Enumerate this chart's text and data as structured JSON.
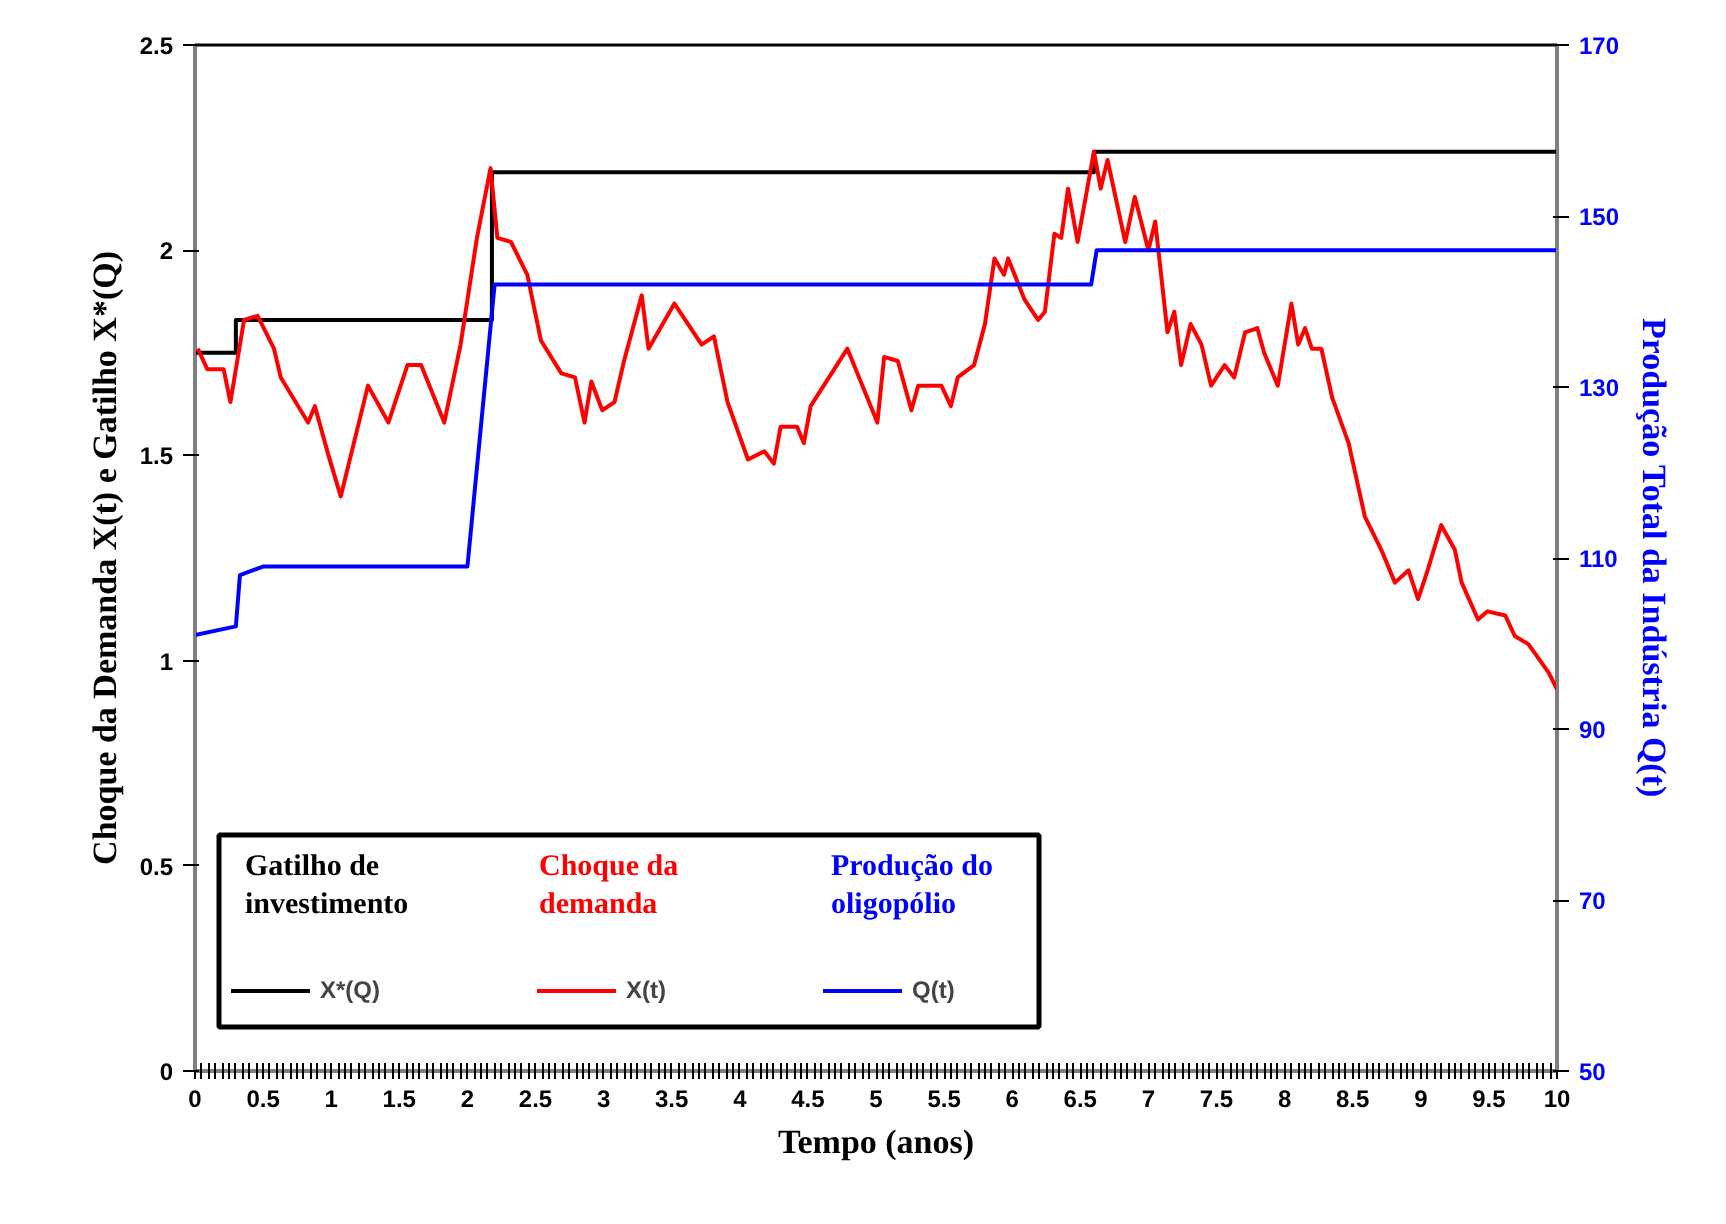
{
  "chart_data": {
    "type": "line",
    "xlabel": "Tempo (anos)",
    "ylabel": "Choque da Demanda X(t) e Gatilho X*(Q)",
    "y2label": "Produção Total da Indústria Q(t)",
    "xlim": [
      0,
      10
    ],
    "xticks": [
      0,
      0.5,
      1,
      1.5,
      2,
      2.5,
      3,
      3.5,
      4,
      4.5,
      5,
      5.5,
      6,
      6.5,
      7,
      7.5,
      8,
      8.5,
      9,
      9.5,
      10
    ],
    "ylim": [
      0,
      2.5
    ],
    "yticks": [
      0,
      0.5,
      1,
      1.5,
      2,
      2.5
    ],
    "y2lim": [
      50,
      170
    ],
    "y2ticks": [
      50,
      70,
      90,
      110,
      130,
      150,
      170
    ],
    "grid": false,
    "legend": "bottom left",
    "annotations": [
      "Gatilho de investimento",
      "Choque da demanda",
      "Produção do oligopólio"
    ],
    "series": [
      {
        "name": "X*(Q)",
        "type": "step",
        "color": "#000000",
        "x": [
          0,
          0.3,
          2.18,
          6.6,
          10
        ],
        "values": [
          1.75,
          1.83,
          2.19,
          2.24,
          2.24
        ]
      },
      {
        "name": "X(t)",
        "color": "#ff0000",
        "x": [
          0.02,
          0.09,
          0.21,
          0.26,
          0.36,
          0.46,
          0.58,
          0.63,
          0.83,
          0.88,
          0.98,
          1.07,
          1.27,
          1.42,
          1.56,
          1.66,
          1.83,
          1.95,
          2.07,
          2.17,
          2.22,
          2.32,
          2.44,
          2.54,
          2.69,
          2.79,
          2.86,
          2.91,
          2.99,
          3.08,
          3.15,
          3.28,
          3.33,
          3.52,
          3.62,
          3.72,
          3.81,
          3.91,
          4.06,
          4.18,
          4.25,
          4.3,
          4.42,
          4.47,
          4.52,
          4.79,
          5.01,
          5.06,
          5.16,
          5.26,
          5.31,
          5.48,
          5.55,
          5.6,
          5.72,
          5.8,
          5.87,
          5.94,
          5.97,
          6.09,
          6.19,
          6.24,
          6.31,
          6.36,
          6.41,
          6.48,
          6.6,
          6.65,
          6.7,
          6.83,
          6.9,
          7.0,
          7.05,
          7.14,
          7.19,
          7.24,
          7.31,
          7.39,
          7.46,
          7.56,
          7.63,
          7.71,
          7.8,
          7.85,
          7.95,
          8.05,
          8.1,
          8.15,
          8.2,
          8.27,
          8.35,
          8.47,
          8.59,
          8.71,
          8.81,
          8.91,
          8.98,
          9.05,
          9.15,
          9.25,
          9.3,
          9.42,
          9.49,
          9.62,
          9.69,
          9.79,
          9.94,
          10.0
        ],
        "values": [
          1.76,
          1.71,
          1.71,
          1.63,
          1.83,
          1.84,
          1.76,
          1.69,
          1.58,
          1.62,
          1.5,
          1.4,
          1.67,
          1.58,
          1.72,
          1.72,
          1.58,
          1.77,
          2.03,
          2.2,
          2.03,
          2.02,
          1.94,
          1.78,
          1.7,
          1.69,
          1.58,
          1.68,
          1.61,
          1.63,
          1.73,
          1.89,
          1.76,
          1.87,
          1.82,
          1.77,
          1.79,
          1.63,
          1.49,
          1.51,
          1.48,
          1.57,
          1.57,
          1.53,
          1.62,
          1.76,
          1.58,
          1.74,
          1.73,
          1.61,
          1.67,
          1.67,
          1.62,
          1.69,
          1.72,
          1.82,
          1.98,
          1.94,
          1.98,
          1.88,
          1.83,
          1.85,
          2.04,
          2.03,
          2.15,
          2.02,
          2.24,
          2.15,
          2.22,
          2.02,
          2.13,
          2.0,
          2.07,
          1.8,
          1.85,
          1.72,
          1.82,
          1.77,
          1.67,
          1.72,
          1.69,
          1.8,
          1.81,
          1.75,
          1.67,
          1.87,
          1.77,
          1.81,
          1.76,
          1.76,
          1.64,
          1.53,
          1.35,
          1.27,
          1.19,
          1.22,
          1.15,
          1.22,
          1.33,
          1.27,
          1.19,
          1.1,
          1.12,
          1.11,
          1.06,
          1.04,
          0.97,
          0.93
        ]
      },
      {
        "name": "Q(t)",
        "type": "line",
        "axis": "y2",
        "color": "#0000ff",
        "x": [
          0,
          0.3,
          0.33,
          0.5,
          2.0,
          2.2,
          6.58,
          6.62,
          10
        ],
        "values": [
          101,
          102,
          108,
          109,
          109,
          142,
          142,
          146,
          146
        ]
      }
    ]
  }
}
